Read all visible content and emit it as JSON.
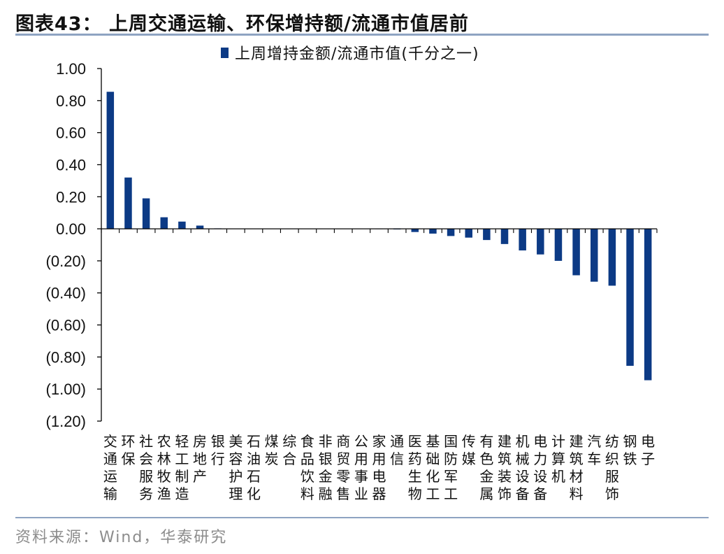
{
  "figure": {
    "title": "图表43：  上周交通运输、环保增持额/流通市值居前",
    "source": "资料来源：Wind，华泰研究"
  },
  "colors": {
    "bar": "#0c3a85",
    "axis": "#000000",
    "rule": "#8ea3c2"
  },
  "chart_data": {
    "type": "bar",
    "title": "",
    "xlabel": "",
    "ylabel": "",
    "ylim": [
      -1.2,
      1.0
    ],
    "yticks": [
      1.0,
      0.8,
      0.6,
      0.4,
      0.2,
      0.0,
      -0.2,
      -0.4,
      -0.6,
      -0.8,
      -1.0,
      -1.2
    ],
    "ytick_labels": [
      "1.00",
      "0.80",
      "0.60",
      "0.40",
      "0.20",
      "0.00",
      "(0.20)",
      "(0.40)",
      "(0.60)",
      "(0.80)",
      "(1.00)",
      "(1.20)"
    ],
    "grid": false,
    "legend_position": "top-right",
    "categories": [
      "交通运输",
      "环保",
      "社会服务",
      "农林牧渔",
      "轻工制造",
      "房地产",
      "银行",
      "美容护理",
      "石油石化",
      "煤炭",
      "综合",
      "食品饮料",
      "非银金融",
      "商贸零售",
      "公用事业",
      "家用电器",
      "通信",
      "医药生物",
      "基础化工",
      "国防军工",
      "传媒",
      "有色金属",
      "建筑装饰",
      "机械设备",
      "电力设备",
      "计算机",
      "建筑材料",
      "汽车",
      "纺织服饰",
      "钢铁",
      "电子"
    ],
    "series": [
      {
        "name": "上周增持金额/流通市值(千分之一)",
        "values": [
          0.855,
          0.32,
          0.19,
          0.072,
          0.045,
          0.02,
          0.003,
          0.002,
          0.002,
          0.001,
          0.001,
          0.001,
          0.001,
          0.0,
          0.0,
          -0.002,
          -0.004,
          -0.02,
          -0.03,
          -0.045,
          -0.055,
          -0.07,
          -0.095,
          -0.135,
          -0.16,
          -0.2,
          -0.29,
          -0.33,
          -0.355,
          -0.855,
          -0.945
        ]
      }
    ]
  }
}
